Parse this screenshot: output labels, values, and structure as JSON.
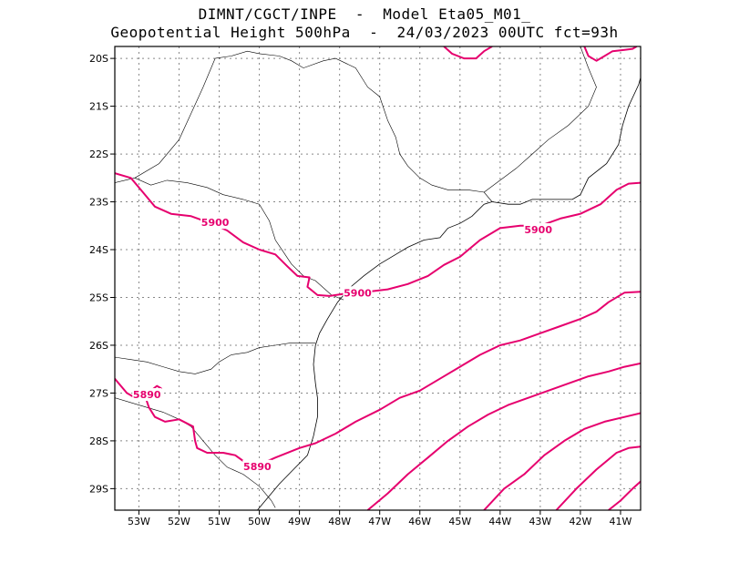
{
  "header": {
    "line1": "DIMNT/CGCT/INPE  -  Model Eta05_M01_",
    "line2": "Geopotential Height 500hPa  -  24/03/2023 00UTC fct=93h"
  },
  "map": {
    "lon_range": [
      -53.6,
      -40.5
    ],
    "lat_range": [
      -29.45,
      -19.75
    ],
    "gridlines": true,
    "lat_ticks": [
      {
        "value": -20,
        "label": "20S"
      },
      {
        "value": -21,
        "label": "21S"
      },
      {
        "value": -22,
        "label": "22S"
      },
      {
        "value": -23,
        "label": "23S"
      },
      {
        "value": -24,
        "label": "24S"
      },
      {
        "value": -25,
        "label": "25S"
      },
      {
        "value": -26,
        "label": "26S"
      },
      {
        "value": -27,
        "label": "27S"
      },
      {
        "value": -28,
        "label": "28S"
      },
      {
        "value": -29,
        "label": "29S"
      }
    ],
    "lon_ticks": [
      {
        "value": -53,
        "label": "53W"
      },
      {
        "value": -52,
        "label": "52W"
      },
      {
        "value": -51,
        "label": "51W"
      },
      {
        "value": -50,
        "label": "50W"
      },
      {
        "value": -49,
        "label": "49W"
      },
      {
        "value": -48,
        "label": "48W"
      },
      {
        "value": -47,
        "label": "47W"
      },
      {
        "value": -46,
        "label": "46W"
      },
      {
        "value": -45,
        "label": "45W"
      },
      {
        "value": -44,
        "label": "44W"
      },
      {
        "value": -43,
        "label": "43W"
      },
      {
        "value": -42,
        "label": "42W"
      },
      {
        "value": -41,
        "label": "41W"
      }
    ],
    "contour_color": "#e6006e",
    "contours": [
      {
        "name": "contour-5900",
        "points": [
          [
            -53.6,
            -22.4
          ],
          [
            -53.2,
            -22.5
          ],
          [
            -52.9,
            -22.8
          ],
          [
            -52.6,
            -23.1
          ],
          [
            -52.2,
            -23.25
          ],
          [
            -51.7,
            -23.3
          ],
          [
            -51.2,
            -23.45
          ],
          [
            -50.8,
            -23.6
          ],
          [
            -50.4,
            -23.85
          ],
          [
            -50.0,
            -24.0
          ],
          [
            -49.6,
            -24.1
          ],
          [
            -49.3,
            -24.35
          ],
          [
            -49.05,
            -24.55
          ],
          [
            -48.75,
            -24.58
          ],
          [
            -48.8,
            -24.78
          ],
          [
            -48.55,
            -24.95
          ],
          [
            -48.25,
            -24.97
          ],
          [
            -47.85,
            -24.92
          ],
          [
            -47.3,
            -24.88
          ],
          [
            -46.8,
            -24.83
          ],
          [
            -46.3,
            -24.72
          ],
          [
            -45.8,
            -24.55
          ],
          [
            -45.4,
            -24.32
          ],
          [
            -45.0,
            -24.15
          ],
          [
            -44.5,
            -23.8
          ],
          [
            -44.0,
            -23.55
          ],
          [
            -43.5,
            -23.5
          ],
          [
            -43.0,
            -23.5
          ],
          [
            -42.5,
            -23.35
          ],
          [
            -42.0,
            -23.25
          ],
          [
            -41.5,
            -23.05
          ],
          [
            -41.1,
            -22.75
          ],
          [
            -40.8,
            -22.62
          ],
          [
            -40.5,
            -22.6
          ]
        ]
      },
      {
        "name": "contour-5890",
        "points": [
          [
            -53.6,
            -26.7
          ],
          [
            -53.3,
            -27.0
          ],
          [
            -53.05,
            -27.12
          ],
          [
            -52.7,
            -27.0
          ],
          [
            -52.45,
            -26.9
          ],
          [
            -52.55,
            -26.85
          ],
          [
            -52.85,
            -27.05
          ],
          [
            -52.75,
            -27.3
          ],
          [
            -52.6,
            -27.5
          ],
          [
            -52.35,
            -27.6
          ],
          [
            -52.0,
            -27.55
          ],
          [
            -51.65,
            -27.7
          ],
          [
            -51.6,
            -28.0
          ],
          [
            -51.55,
            -28.15
          ],
          [
            -51.3,
            -28.25
          ],
          [
            -50.9,
            -28.25
          ],
          [
            -50.6,
            -28.3
          ],
          [
            -50.4,
            -28.42
          ],
          [
            -50.0,
            -28.5
          ],
          [
            -49.6,
            -28.35
          ],
          [
            -49.0,
            -28.15
          ],
          [
            -48.6,
            -28.05
          ],
          [
            -48.1,
            -27.85
          ],
          [
            -47.6,
            -27.6
          ],
          [
            -47.0,
            -27.35
          ],
          [
            -46.5,
            -27.1
          ],
          [
            -46.0,
            -26.95
          ],
          [
            -45.5,
            -26.7
          ],
          [
            -45.0,
            -26.45
          ],
          [
            -44.5,
            -26.2
          ],
          [
            -44.0,
            -26.0
          ],
          [
            -43.5,
            -25.9
          ],
          [
            -43.0,
            -25.75
          ],
          [
            -42.5,
            -25.6
          ],
          [
            -42.0,
            -25.45
          ],
          [
            -41.6,
            -25.3
          ],
          [
            -41.3,
            -25.1
          ],
          [
            -40.9,
            -24.9
          ],
          [
            -40.5,
            -24.88
          ]
        ]
      },
      {
        "name": "contour-5880",
        "points": [
          [
            -47.3,
            -29.45
          ],
          [
            -46.8,
            -29.1
          ],
          [
            -46.3,
            -28.7
          ],
          [
            -45.8,
            -28.35
          ],
          [
            -45.3,
            -28.0
          ],
          [
            -44.8,
            -27.7
          ],
          [
            -44.3,
            -27.45
          ],
          [
            -43.8,
            -27.25
          ],
          [
            -43.3,
            -27.1
          ],
          [
            -42.8,
            -26.95
          ],
          [
            -42.3,
            -26.8
          ],
          [
            -41.8,
            -26.65
          ],
          [
            -41.3,
            -26.55
          ],
          [
            -40.9,
            -26.45
          ],
          [
            -40.5,
            -26.38
          ]
        ]
      },
      {
        "name": "contour-5870",
        "points": [
          [
            -44.4,
            -29.45
          ],
          [
            -43.9,
            -29.0
          ],
          [
            -43.4,
            -28.7
          ],
          [
            -42.9,
            -28.3
          ],
          [
            -42.4,
            -28.0
          ],
          [
            -41.9,
            -27.75
          ],
          [
            -41.4,
            -27.6
          ],
          [
            -40.9,
            -27.5
          ],
          [
            -40.5,
            -27.42
          ]
        ]
      },
      {
        "name": "contour-5860",
        "points": [
          [
            -42.6,
            -29.45
          ],
          [
            -42.1,
            -29.0
          ],
          [
            -41.6,
            -28.6
          ],
          [
            -41.1,
            -28.25
          ],
          [
            -40.8,
            -28.15
          ],
          [
            -40.5,
            -28.12
          ]
        ]
      },
      {
        "name": "contour-5850",
        "points": [
          [
            -41.3,
            -29.45
          ],
          [
            -41.0,
            -29.25
          ],
          [
            -40.7,
            -29.0
          ],
          [
            -40.5,
            -28.85
          ]
        ]
      },
      {
        "name": "contour-top",
        "points": [
          [
            -45.4,
            -19.75
          ],
          [
            -45.2,
            -19.9
          ],
          [
            -44.9,
            -20.0
          ],
          [
            -44.6,
            -20.0
          ],
          [
            -44.4,
            -19.85
          ],
          [
            -44.2,
            -19.75
          ]
        ]
      },
      {
        "name": "contour-top-right",
        "points": [
          [
            -41.9,
            -19.75
          ],
          [
            -41.8,
            -19.95
          ],
          [
            -41.6,
            -20.05
          ],
          [
            -41.4,
            -19.95
          ],
          [
            -41.2,
            -19.85
          ],
          [
            -40.9,
            -19.82
          ],
          [
            -40.7,
            -19.8
          ],
          [
            -40.6,
            -19.75
          ]
        ]
      }
    ],
    "contour_labels": [
      {
        "text": "5900",
        "lon": -51.1,
        "lat": -23.45
      },
      {
        "text": "5900",
        "lon": -47.55,
        "lat": -24.92
      },
      {
        "text": "5900",
        "lon": -43.05,
        "lat": -23.6
      },
      {
        "text": "5890",
        "lon": -52.8,
        "lat": -27.05
      },
      {
        "text": "5890",
        "lon": -50.05,
        "lat": -28.55
      }
    ],
    "coastline": [
      [
        -44.2,
        -23.0
      ],
      [
        -44.4,
        -23.05
      ],
      [
        -44.7,
        -23.3
      ],
      [
        -45.0,
        -23.45
      ],
      [
        -45.3,
        -23.55
      ],
      [
        -45.5,
        -23.75
      ],
      [
        -45.9,
        -23.8
      ],
      [
        -46.3,
        -23.95
      ],
      [
        -46.6,
        -24.1
      ],
      [
        -47.0,
        -24.3
      ],
      [
        -47.4,
        -24.55
      ],
      [
        -47.75,
        -24.8
      ],
      [
        -48.05,
        -25.1
      ],
      [
        -48.3,
        -25.45
      ],
      [
        -48.5,
        -25.75
      ],
      [
        -48.6,
        -26.0
      ],
      [
        -48.65,
        -26.4
      ],
      [
        -48.6,
        -26.8
      ],
      [
        -48.55,
        -27.1
      ],
      [
        -48.55,
        -27.5
      ],
      [
        -48.65,
        -27.9
      ],
      [
        -48.8,
        -28.3
      ],
      [
        -49.15,
        -28.6
      ],
      [
        -49.5,
        -28.9
      ],
      [
        -49.8,
        -29.2
      ],
      [
        -50.05,
        -29.45
      ]
    ],
    "coastline_east": [
      [
        -44.2,
        -23.0
      ],
      [
        -43.8,
        -23.05
      ],
      [
        -43.5,
        -23.05
      ],
      [
        -43.2,
        -22.95
      ],
      [
        -42.8,
        -22.95
      ],
      [
        -42.2,
        -22.95
      ],
      [
        -42.0,
        -22.85
      ],
      [
        -41.8,
        -22.5
      ],
      [
        -41.35,
        -22.2
      ],
      [
        -41.05,
        -21.8
      ],
      [
        -40.95,
        -21.4
      ],
      [
        -40.8,
        -21.0
      ],
      [
        -40.55,
        -20.55
      ],
      [
        -40.5,
        -20.4
      ]
    ],
    "borders": [
      {
        "name": "border-sp-mg",
        "points": [
          [
            -51.1,
            -20.0
          ],
          [
            -50.7,
            -19.95
          ],
          [
            -50.3,
            -19.85
          ],
          [
            -50.0,
            -19.9
          ],
          [
            -49.5,
            -19.95
          ],
          [
            -49.2,
            -20.05
          ],
          [
            -48.9,
            -20.2
          ],
          [
            -48.4,
            -20.05
          ],
          [
            -48.1,
            -20.0
          ],
          [
            -47.6,
            -20.2
          ],
          [
            -47.3,
            -20.6
          ],
          [
            -47.0,
            -20.8
          ],
          [
            -46.8,
            -21.3
          ],
          [
            -46.6,
            -21.65
          ],
          [
            -46.5,
            -22.0
          ],
          [
            -46.3,
            -22.25
          ],
          [
            -46.0,
            -22.5
          ],
          [
            -45.7,
            -22.65
          ],
          [
            -45.3,
            -22.75
          ],
          [
            -44.8,
            -22.75
          ],
          [
            -44.4,
            -22.8
          ],
          [
            -44.2,
            -23.0
          ]
        ]
      },
      {
        "name": "border-mg-rj",
        "points": [
          [
            -44.4,
            -22.8
          ],
          [
            -44.0,
            -22.55
          ],
          [
            -43.6,
            -22.3
          ],
          [
            -43.2,
            -22.0
          ],
          [
            -42.8,
            -21.7
          ],
          [
            -42.3,
            -21.4
          ],
          [
            -41.8,
            -21.0
          ],
          [
            -41.6,
            -20.6
          ],
          [
            -41.8,
            -20.2
          ],
          [
            -42.0,
            -19.75
          ]
        ]
      },
      {
        "name": "border-sp-pr",
        "points": [
          [
            -53.1,
            -22.5
          ],
          [
            -52.7,
            -22.65
          ],
          [
            -52.3,
            -22.55
          ],
          [
            -51.8,
            -22.6
          ],
          [
            -51.3,
            -22.7
          ],
          [
            -50.9,
            -22.85
          ],
          [
            -50.4,
            -22.95
          ],
          [
            -50.0,
            -23.05
          ],
          [
            -49.75,
            -23.4
          ],
          [
            -49.6,
            -23.8
          ],
          [
            -49.4,
            -24.05
          ],
          [
            -49.2,
            -24.3
          ],
          [
            -48.9,
            -24.55
          ],
          [
            -48.6,
            -24.65
          ],
          [
            -48.2,
            -24.95
          ],
          [
            -47.9,
            -25.05
          ]
        ]
      },
      {
        "name": "border-ms-sp",
        "points": [
          [
            -53.6,
            -22.6
          ],
          [
            -53.1,
            -22.5
          ],
          [
            -52.5,
            -22.2
          ],
          [
            -52.0,
            -21.7
          ],
          [
            -51.7,
            -21.15
          ],
          [
            -51.4,
            -20.6
          ],
          [
            -51.1,
            -20.0
          ]
        ]
      },
      {
        "name": "border-pr-sc",
        "points": [
          [
            -53.6,
            -26.25
          ],
          [
            -53.2,
            -26.3
          ],
          [
            -52.8,
            -26.35
          ],
          [
            -52.4,
            -26.45
          ],
          [
            -52.0,
            -26.55
          ],
          [
            -51.6,
            -26.6
          ],
          [
            -51.2,
            -26.5
          ],
          [
            -51.0,
            -26.35
          ],
          [
            -50.7,
            -26.2
          ],
          [
            -50.3,
            -26.15
          ],
          [
            -50.0,
            -26.05
          ],
          [
            -49.6,
            -26.0
          ],
          [
            -49.2,
            -25.95
          ],
          [
            -48.9,
            -25.95
          ],
          [
            -48.6,
            -25.95
          ]
        ]
      },
      {
        "name": "border-sc-rs",
        "points": [
          [
            -53.6,
            -27.1
          ],
          [
            -53.2,
            -27.2
          ],
          [
            -52.8,
            -27.3
          ],
          [
            -52.4,
            -27.4
          ],
          [
            -52.0,
            -27.55
          ],
          [
            -51.7,
            -27.7
          ],
          [
            -51.4,
            -28.0
          ],
          [
            -51.1,
            -28.3
          ],
          [
            -50.8,
            -28.55
          ],
          [
            -50.4,
            -28.7
          ],
          [
            -50.0,
            -28.95
          ],
          [
            -49.7,
            -29.25
          ],
          [
            -49.6,
            -29.4
          ]
        ]
      }
    ]
  }
}
